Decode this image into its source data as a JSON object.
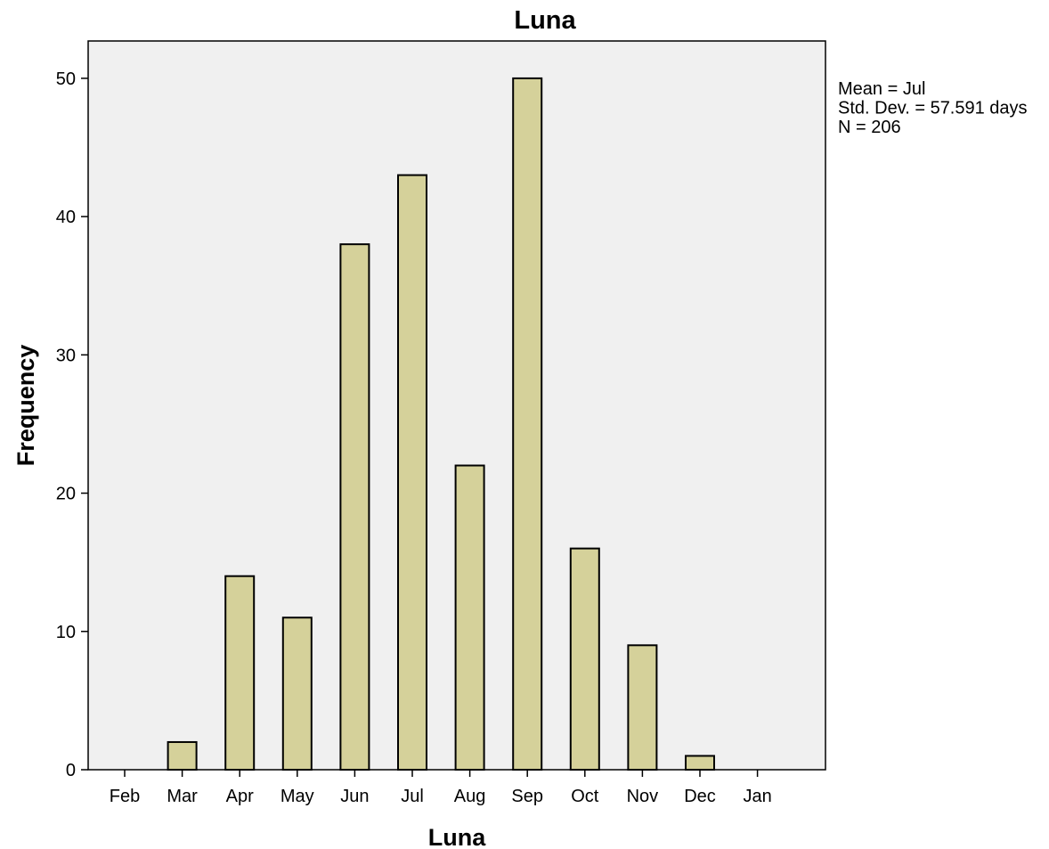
{
  "chart_data": {
    "type": "bar",
    "title": "Luna",
    "xlabel": "Luna",
    "ylabel": "Frequency",
    "categories": [
      "Feb",
      "Mar",
      "Apr",
      "May",
      "Jun",
      "Jul",
      "Aug",
      "Sep",
      "Oct",
      "Nov",
      "Dec",
      "Jan"
    ],
    "values": [
      0,
      2,
      14,
      11,
      38,
      43,
      22,
      50,
      16,
      9,
      1,
      0
    ],
    "ylim": [
      0,
      52.7
    ],
    "yticks": [
      0,
      10,
      20,
      30,
      40,
      50
    ],
    "grid": false,
    "legend": "none",
    "stats": [
      "Mean = Jul",
      "Std. Dev. = 57.591 days",
      "N = 206"
    ],
    "colors": {
      "plot_background": "#f0f0f0",
      "bar_fill": "#d5d19a",
      "bar_stroke": "#000000"
    }
  }
}
